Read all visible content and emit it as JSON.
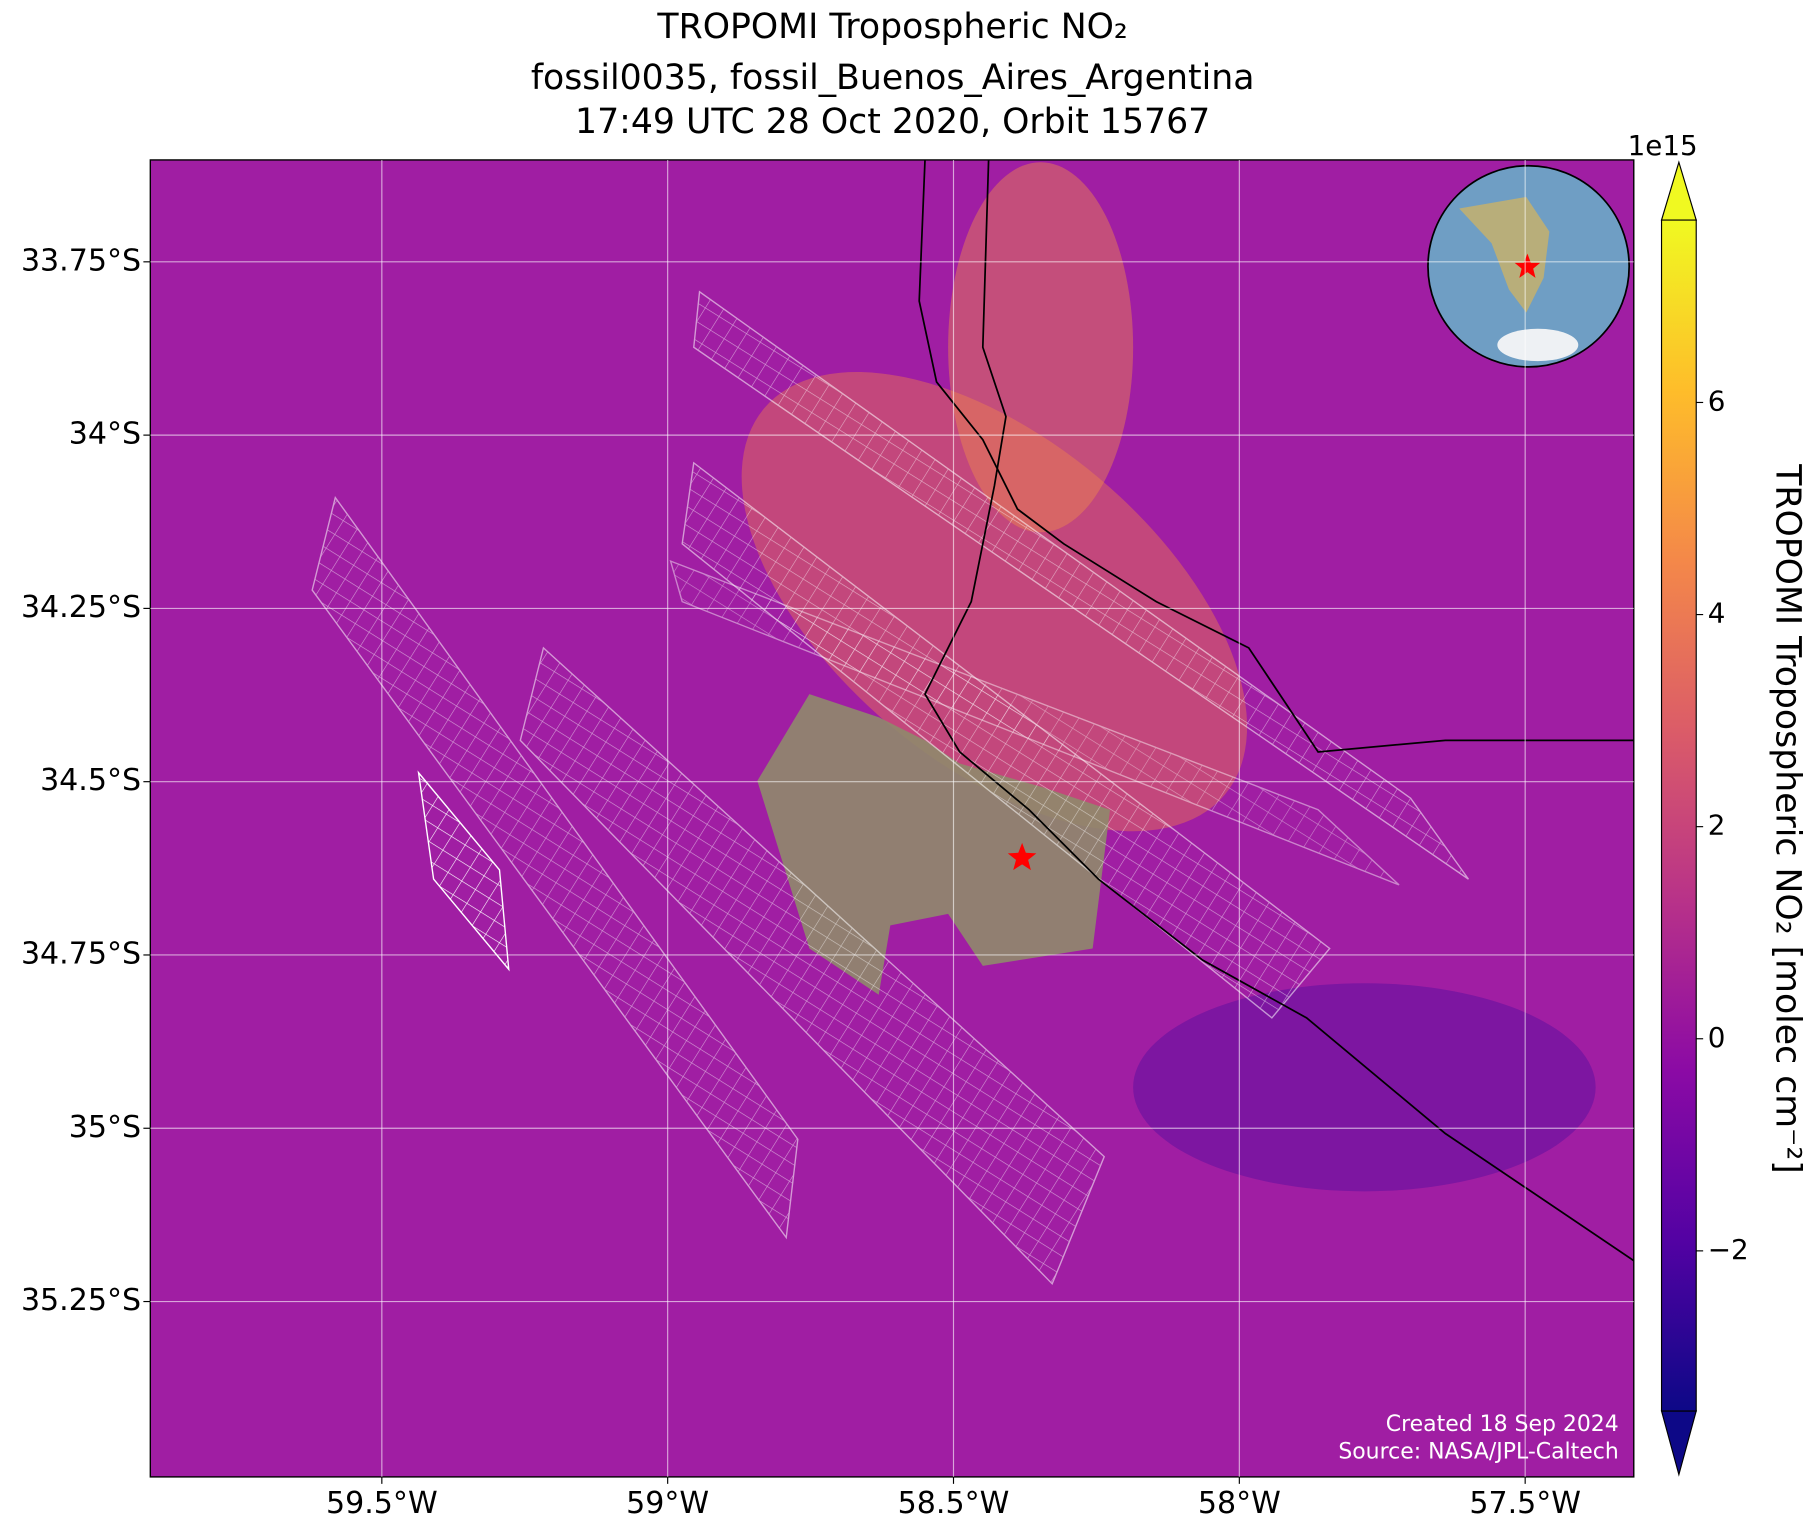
{
  "map": {
    "title": [
      "TROPOMI Tropospheric NO₂",
      "fossil0035, fossil_Buenos_Aires_Argentina",
      "17:49 UTC 28 Oct 2020, Orbit 15767"
    ],
    "lonlim": [
      -59.905,
      -57.31
    ],
    "latlim": [
      -35.503,
      -33.603
    ],
    "lonticks": [
      {
        "value": -59.5,
        "label": "59.5°W"
      },
      {
        "value": -59,
        "label": "59°W"
      },
      {
        "value": -58.5,
        "label": "58.5°W"
      },
      {
        "value": -58,
        "label": "58°W"
      },
      {
        "value": -57.5,
        "label": "57.5°W"
      }
    ],
    "latticks": [
      {
        "value": -33.75,
        "label": "33.75°S"
      },
      {
        "value": -34,
        "label": "34°S"
      },
      {
        "value": -34.25,
        "label": "34.25°S"
      },
      {
        "value": -34.5,
        "label": "34.5°S"
      },
      {
        "value": -34.75,
        "label": "34.75°S"
      },
      {
        "value": -35,
        "label": "35°S"
      },
      {
        "value": -35.25,
        "label": "35.25°S"
      }
    ],
    "grid": true,
    "site": {
      "lon": -58.38,
      "lat": -34.61,
      "color": "#ff0000"
    },
    "colorbar": {
      "label": "TROPOMI Tropospheric NO₂ [molec cm⁻²]",
      "exponent": "1e15",
      "lim": [
        -3.51,
        7.72
      ],
      "ticks": [
        {
          "value": -2,
          "label": "−2"
        },
        0,
        2,
        4,
        6
      ],
      "colormap": [
        "#0d0887",
        "#5302a3",
        "#8b0aa5",
        "#b83289",
        "#db5c68",
        "#f48849",
        "#febd2a",
        "#f0f921"
      ]
    },
    "credits": [
      "Created 18 Sep 2024",
      "Source: NASA/JPL-Caltech"
    ]
  }
}
